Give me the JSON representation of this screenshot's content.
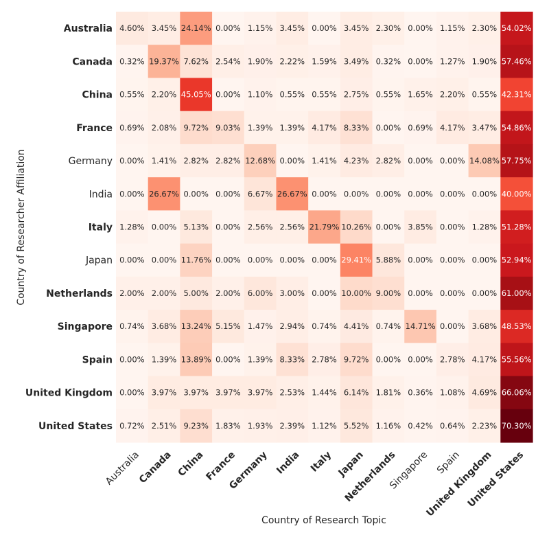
{
  "chart_data": {
    "type": "heatmap",
    "title": "",
    "xlabel": "Country of Research Topic",
    "ylabel": "Country of Researcher Affiliation",
    "value_format": "percent with two decimals",
    "color_scale": {
      "low": "#fff5f0",
      "high": "#67000d",
      "name": "Reds"
    },
    "grid": false,
    "legend": "none",
    "columns": [
      "Australia",
      "Canada",
      "China",
      "France",
      "Germany",
      "India",
      "Italy",
      "Japan",
      "Netherlands",
      "Singapore",
      "Spain",
      "United Kingdom",
      "United States"
    ],
    "rows": [
      "Australia",
      "Canada",
      "China",
      "France",
      "Germany",
      "India",
      "Italy",
      "Japan",
      "Netherlands",
      "Singapore",
      "Spain",
      "United Kingdom",
      "United States"
    ],
    "bold_x_labels": [
      "Canada",
      "China",
      "France",
      "Germany",
      "India",
      "Italy",
      "Japan",
      "Netherlands",
      "United Kingdom",
      "United States"
    ],
    "bold_y_labels": [
      "Australia",
      "Canada",
      "China",
      "France",
      "Italy",
      "Netherlands",
      "Singapore",
      "Spain",
      "United Kingdom",
      "United States"
    ],
    "values": [
      [
        4.6,
        3.45,
        24.14,
        0.0,
        1.15,
        3.45,
        0.0,
        3.45,
        2.3,
        0.0,
        1.15,
        2.3,
        54.02
      ],
      [
        0.32,
        19.37,
        7.62,
        2.54,
        1.9,
        2.22,
        1.59,
        3.49,
        0.32,
        0.0,
        1.27,
        1.9,
        57.46
      ],
      [
        0.55,
        2.2,
        45.05,
        0.0,
        1.1,
        0.55,
        0.55,
        2.75,
        0.55,
        1.65,
        2.2,
        0.55,
        42.31
      ],
      [
        0.69,
        2.08,
        9.72,
        9.03,
        1.39,
        1.39,
        4.17,
        8.33,
        0.0,
        0.69,
        4.17,
        3.47,
        54.86
      ],
      [
        0.0,
        1.41,
        2.82,
        2.82,
        12.68,
        0.0,
        1.41,
        4.23,
        2.82,
        0.0,
        0.0,
        14.08,
        57.75
      ],
      [
        0.0,
        26.67,
        0.0,
        0.0,
        6.67,
        26.67,
        0.0,
        0.0,
        0.0,
        0.0,
        0.0,
        0.0,
        40.0
      ],
      [
        1.28,
        0.0,
        5.13,
        0.0,
        2.56,
        2.56,
        21.79,
        10.26,
        0.0,
        3.85,
        0.0,
        1.28,
        51.28
      ],
      [
        0.0,
        0.0,
        11.76,
        0.0,
        0.0,
        0.0,
        0.0,
        29.41,
        5.88,
        0.0,
        0.0,
        0.0,
        52.94
      ],
      [
        2.0,
        2.0,
        5.0,
        2.0,
        6.0,
        3.0,
        0.0,
        10.0,
        9.0,
        0.0,
        0.0,
        0.0,
        61.0
      ],
      [
        0.74,
        3.68,
        13.24,
        5.15,
        1.47,
        2.94,
        0.74,
        4.41,
        0.74,
        14.71,
        0.0,
        3.68,
        48.53
      ],
      [
        0.0,
        1.39,
        13.89,
        0.0,
        1.39,
        8.33,
        2.78,
        9.72,
        0.0,
        0.0,
        2.78,
        4.17,
        55.56
      ],
      [
        0.0,
        3.97,
        3.97,
        3.97,
        3.97,
        2.53,
        1.44,
        6.14,
        1.81,
        0.36,
        1.08,
        4.69,
        66.06
      ],
      [
        0.72,
        2.51,
        9.23,
        1.83,
        1.93,
        2.39,
        1.12,
        5.52,
        1.16,
        0.42,
        0.64,
        2.23,
        70.3
      ]
    ]
  }
}
